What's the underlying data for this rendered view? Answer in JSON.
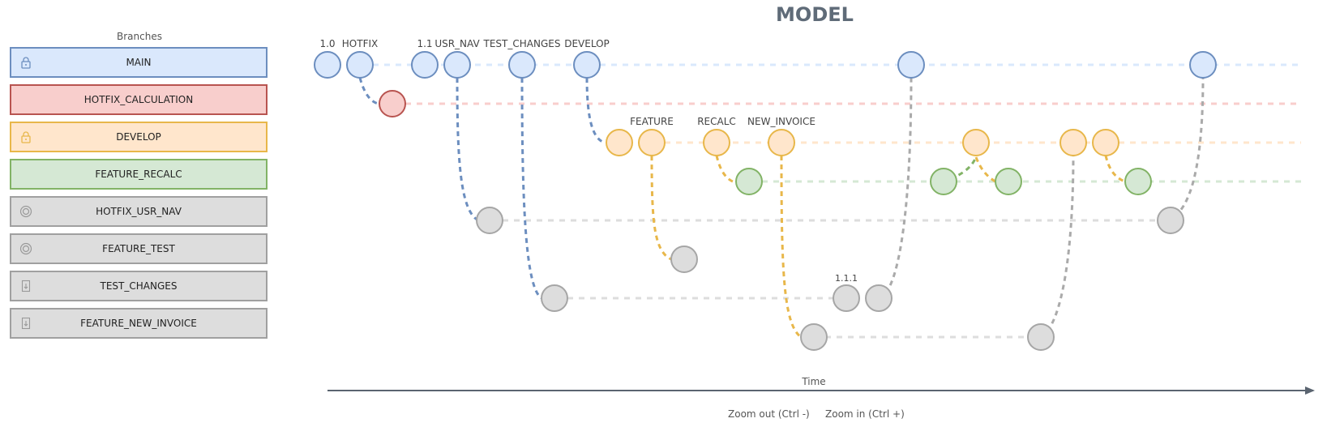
{
  "title": "MODEL",
  "sidebar": {
    "title": "Branches",
    "branches": [
      {
        "name": "MAIN",
        "fill": "#dae8fc",
        "stroke": "#6c8ebf",
        "icon": "lock-icon"
      },
      {
        "name": "HOTFIX_CALCULATION",
        "fill": "#f8cecc",
        "stroke": "#b85450",
        "icon": ""
      },
      {
        "name": "DEVELOP",
        "fill": "#ffe6cc",
        "stroke": "#e8b74a",
        "icon": "lock-icon"
      },
      {
        "name": "FEATURE_RECALC",
        "fill": "#d5e8d4",
        "stroke": "#82b366",
        "icon": ""
      },
      {
        "name": "HOTFIX_USR_NAV",
        "fill": "#dddddd",
        "stroke": "#a0a0a0",
        "icon": "merged-icon"
      },
      {
        "name": "FEATURE_TEST",
        "fill": "#dddddd",
        "stroke": "#a0a0a0",
        "icon": "merged-icon"
      },
      {
        "name": "TEST_CHANGES",
        "fill": "#dddddd",
        "stroke": "#a0a0a0",
        "icon": "archive-icon"
      },
      {
        "name": "FEATURE_NEW_INVOICE",
        "fill": "#dddddd",
        "stroke": "#a0a0a0",
        "icon": "archive-icon"
      }
    ]
  },
  "tags": [
    "1.0",
    "HOTFIX",
    "1.1",
    "USR_NAV",
    "TEST_CHANGES",
    "DEVELOP",
    "FEATURE",
    "RECALC",
    "NEW_INVOICE",
    "1.1.1"
  ],
  "axis": {
    "label": "Time"
  },
  "zoom": {
    "out_label": "Zoom out (Ctrl -)",
    "in_label": "Zoom in (Ctrl +)"
  }
}
